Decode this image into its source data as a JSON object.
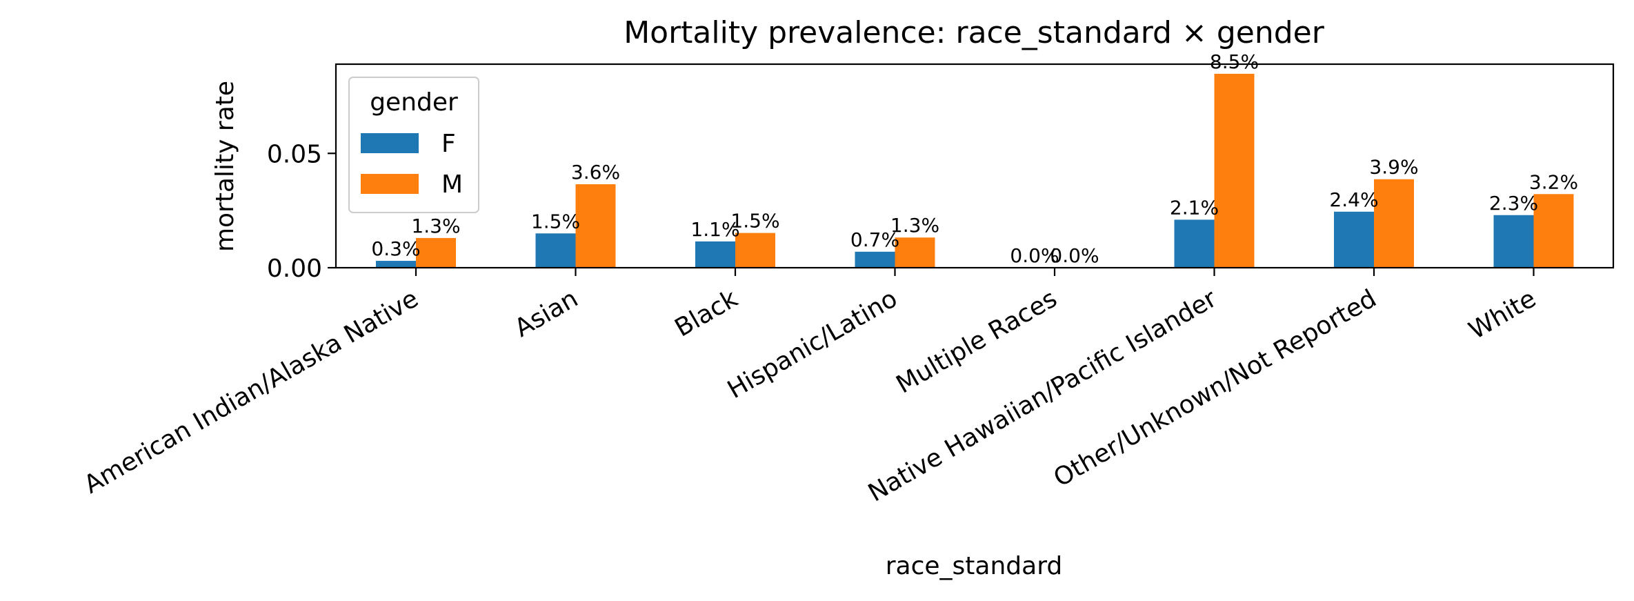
{
  "chart_data": {
    "type": "bar",
    "title": "Mortality prevalence: race_standard × gender",
    "xlabel": "race_standard",
    "ylabel": "mortality rate",
    "categories": [
      "American Indian/Alaska Native",
      "Asian",
      "Black",
      "Hispanic/Latino",
      "Multiple Races",
      "Native Hawaiian/Pacific Islander",
      "Other/Unknown/Not Reported",
      "White"
    ],
    "series": [
      {
        "name": "F",
        "color": "#1f77b4",
        "values": [
          0.003,
          0.015,
          0.0115,
          0.007,
          0.0,
          0.021,
          0.0245,
          0.023
        ],
        "labels": [
          "0.3%",
          "1.5%",
          "1.1%",
          "0.7%",
          "0.0%",
          "2.1%",
          "2.4%",
          "2.3%"
        ]
      },
      {
        "name": "M",
        "color": "#ff7f0e",
        "values": [
          0.013,
          0.0365,
          0.0152,
          0.0132,
          0.0,
          0.0848,
          0.0387,
          0.0322
        ],
        "labels": [
          "1.3%",
          "3.6%",
          "1.5%",
          "1.3%",
          "0.0%",
          "8.5%",
          "3.9%",
          "3.2%"
        ]
      }
    ],
    "yticks": [
      0.0,
      0.05
    ],
    "ytick_labels": [
      "0.00",
      "0.05"
    ],
    "ylim": [
      0,
      0.089
    ],
    "legend": {
      "title": "gender",
      "placement": "upper-left"
    },
    "grid": false
  }
}
